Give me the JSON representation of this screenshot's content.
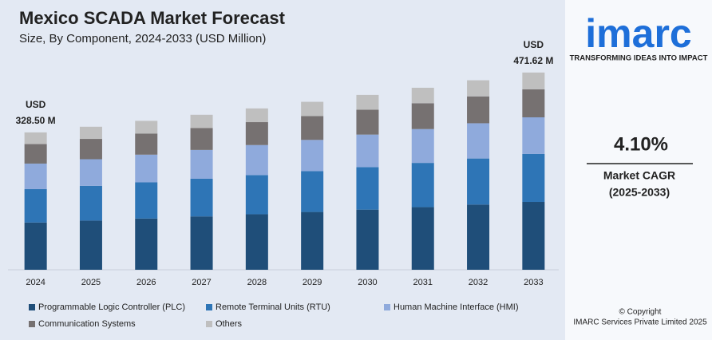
{
  "chart_data": {
    "type": "stacked_bar",
    "title": "Mexico SCADA Market Forecast",
    "subtitle": "Size, By Component, 2024-2033 (USD Million)",
    "categories": [
      "2024",
      "2025",
      "2026",
      "2027",
      "2028",
      "2029",
      "2030",
      "2031",
      "2032",
      "2033"
    ],
    "series": [
      {
        "name": "Programmable Logic Controller (PLC)",
        "color": "#1f4e79",
        "values": [
          113.0,
          117.6,
          122.5,
          127.5,
          132.7,
          138.2,
          143.8,
          149.7,
          155.9,
          162.2
        ]
      },
      {
        "name": "Remote Terminal Units (RTU)",
        "color": "#2e75b6",
        "values": [
          79.8,
          83.1,
          86.5,
          90.1,
          93.7,
          97.6,
          101.6,
          105.8,
          110.1,
          114.6
        ]
      },
      {
        "name": "Human Machine Interface (HMI)",
        "color": "#8faadc",
        "values": [
          61.1,
          63.6,
          66.2,
          68.9,
          71.8,
          74.7,
          77.8,
          80.9,
          84.3,
          87.7
        ]
      },
      {
        "name": "Communication Systems",
        "color": "#767171",
        "values": [
          46.6,
          48.6,
          50.6,
          52.6,
          54.8,
          57.0,
          59.4,
          61.8,
          64.3,
          67.0
        ]
      },
      {
        "name": "Others",
        "color": "#bfbfbf",
        "values": [
          28.0,
          29.1,
          30.3,
          31.5,
          32.8,
          34.1,
          35.5,
          37.0,
          38.5,
          40.1
        ]
      }
    ],
    "annotations": [
      [
        "USD",
        "328.50 M"
      ],
      [
        "USD",
        "471.62 M"
      ]
    ],
    "ylim": [
      0,
      500
    ]
  },
  "sidebar": {
    "logo": "imarc",
    "tagline": "TRANSFORMING IDEAS INTO IMPACT",
    "cagr": "4.10%",
    "cagr_label": "Market CAGR",
    "cagr_period": "(2025-2033)",
    "copyright": "© Copyright",
    "company": "IMARC Services Private Limited 2025"
  }
}
